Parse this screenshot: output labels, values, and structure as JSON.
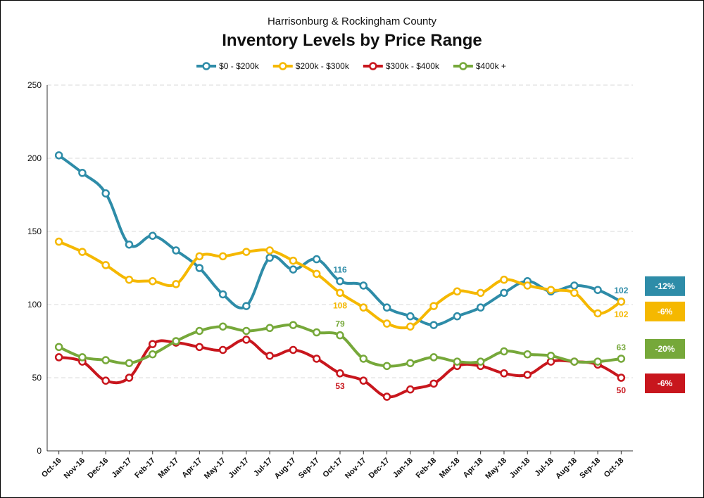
{
  "chart_data": {
    "type": "line",
    "title": "Inventory Levels by Price Range",
    "subtitle": "Harrisonburg & Rockingham County",
    "xlabel": "",
    "ylabel": "",
    "ylim": [
      0,
      250
    ],
    "yticks": [
      0,
      50,
      100,
      150,
      200,
      250
    ],
    "grid": true,
    "legend_position": "top",
    "categories": [
      "Oct-16",
      "Nov-16",
      "Dec-16",
      "Jan-17",
      "Feb-17",
      "Mar-17",
      "Apr-17",
      "May-17",
      "Jun-17",
      "Jul-17",
      "Aug-17",
      "Sep-17",
      "Oct-17",
      "Nov-17",
      "Dec-17",
      "Jan-18",
      "Feb-18",
      "Mar-18",
      "Apr-18",
      "May-18",
      "Jun-18",
      "Jul-18",
      "Aug-18",
      "Sep-18",
      "Oct-18"
    ],
    "series": [
      {
        "name": "$0 - $200k",
        "color": "#2e8ca8",
        "values": [
          202,
          190,
          176,
          141,
          147,
          137,
          125,
          107,
          99,
          132,
          124,
          131,
          116,
          113,
          98,
          92,
          86,
          92,
          98,
          108,
          116,
          109,
          113,
          110,
          102
        ]
      },
      {
        "name": "$200k - $300k",
        "color": "#f5b800",
        "values": [
          143,
          136,
          127,
          117,
          116,
          114,
          133,
          133,
          136,
          137,
          130,
          121,
          108,
          98,
          87,
          85,
          99,
          109,
          108,
          117,
          113,
          110,
          108,
          94,
          102
        ]
      },
      {
        "name": "$300k - $400k",
        "color": "#c8161d",
        "values": [
          64,
          61,
          48,
          50,
          73,
          74,
          71,
          69,
          76,
          65,
          69,
          63,
          53,
          48,
          37,
          42,
          46,
          58,
          58,
          53,
          52,
          61,
          61,
          59,
          50
        ]
      },
      {
        "name": "$400k +",
        "color": "#76a83a",
        "values": [
          71,
          64,
          62,
          60,
          66,
          75,
          82,
          85,
          82,
          84,
          86,
          81,
          79,
          63,
          58,
          60,
          64,
          61,
          61,
          68,
          66,
          65,
          61,
          61,
          63
        ]
      }
    ],
    "annotations": [
      {
        "series": 0,
        "index": 12,
        "text": "116",
        "color": "#2e8ca8",
        "position": "above"
      },
      {
        "series": 1,
        "index": 12,
        "text": "108",
        "color": "#f5b800",
        "position": "below"
      },
      {
        "series": 3,
        "index": 12,
        "text": "79",
        "color": "#76a83a",
        "position": "above"
      },
      {
        "series": 2,
        "index": 12,
        "text": "53",
        "color": "#c8161d",
        "position": "below"
      },
      {
        "series": 0,
        "index": 24,
        "text": "102",
        "color": "#2e8ca8",
        "position": "above"
      },
      {
        "series": 1,
        "index": 24,
        "text": "102",
        "color": "#f5b800",
        "position": "below"
      },
      {
        "series": 3,
        "index": 24,
        "text": "63",
        "color": "#76a83a",
        "position": "above"
      },
      {
        "series": 2,
        "index": 24,
        "text": "50",
        "color": "#c8161d",
        "position": "below"
      }
    ],
    "change_badges": [
      {
        "text": "-12%",
        "color": "#2e8ca8",
        "text_color": "#ffffff"
      },
      {
        "text": "-6%",
        "color": "#f5b800",
        "text_color": "#111111"
      },
      {
        "text": "-20%",
        "color": "#76a83a",
        "text_color": "#ffffff"
      },
      {
        "text": "-6%",
        "color": "#c8161d",
        "text_color": "#ffffff"
      }
    ]
  }
}
